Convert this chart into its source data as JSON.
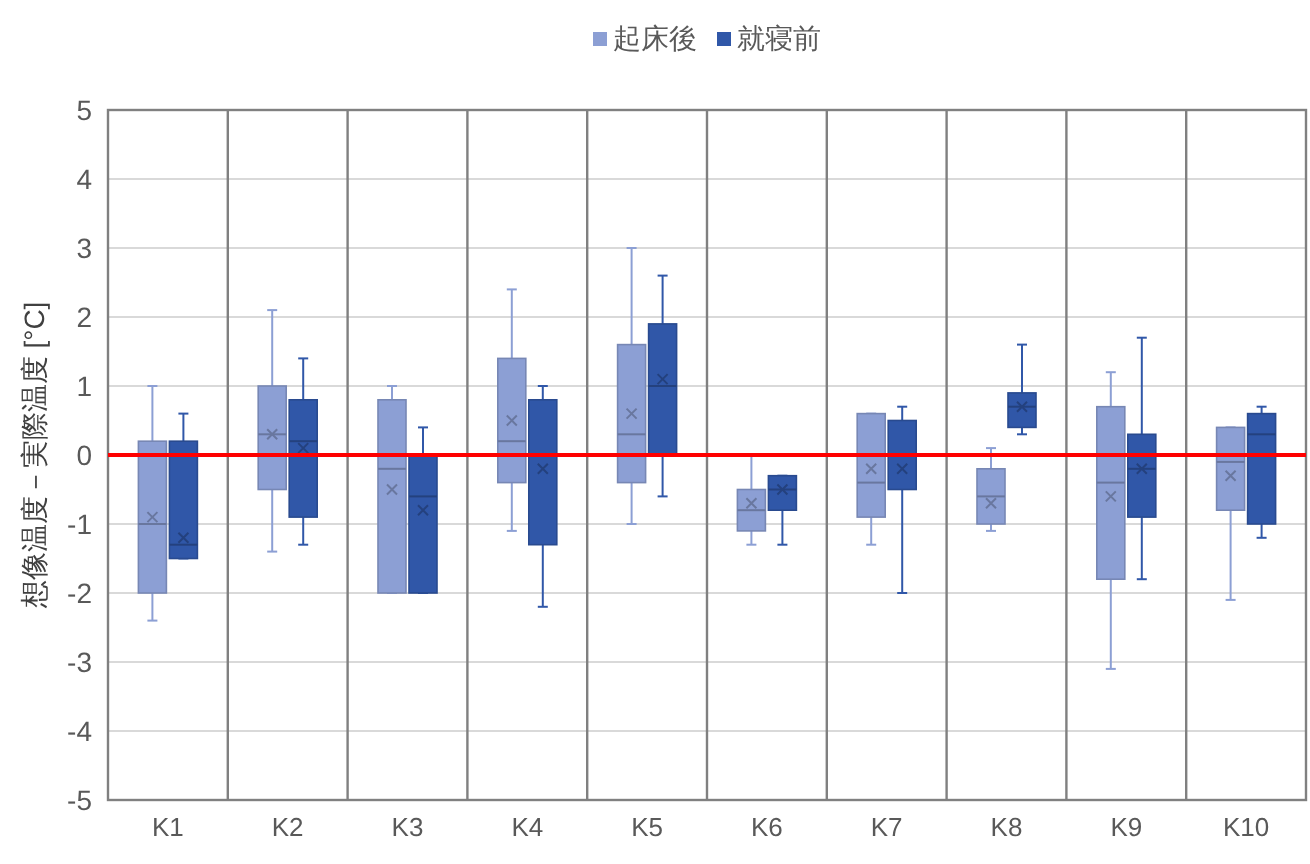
{
  "chart_data": {
    "type": "box",
    "categories": [
      "K1",
      "K2",
      "K3",
      "K4",
      "K5",
      "K6",
      "K7",
      "K8",
      "K9",
      "K10"
    ],
    "series": [
      {
        "name": "起床後",
        "color": "#8c9fd4",
        "boxes": [
          {
            "low": -2.4,
            "q1": -2.0,
            "median": -1.0,
            "q3": 0.2,
            "high": 1.0,
            "mean": -0.9
          },
          {
            "low": -1.4,
            "q1": -0.5,
            "median": 0.3,
            "q3": 1.0,
            "high": 2.1,
            "mean": 0.3
          },
          {
            "low": -2.0,
            "q1": -2.0,
            "median": -0.2,
            "q3": 0.8,
            "high": 1.0,
            "mean": -0.5
          },
          {
            "low": -1.1,
            "q1": -0.4,
            "median": 0.2,
            "q3": 1.4,
            "high": 2.4,
            "mean": 0.5
          },
          {
            "low": -1.0,
            "q1": -0.4,
            "median": 0.3,
            "q3": 1.6,
            "high": 3.0,
            "mean": 0.6
          },
          {
            "low": -1.3,
            "q1": -1.1,
            "median": -0.8,
            "q3": -0.5,
            "high": 0.0,
            "mean": -0.7
          },
          {
            "low": -1.3,
            "q1": -0.9,
            "median": -0.4,
            "q3": 0.6,
            "high": 0.6,
            "mean": -0.2
          },
          {
            "low": -1.1,
            "q1": -1.0,
            "median": -0.6,
            "q3": -0.2,
            "high": 0.1,
            "mean": -0.7
          },
          {
            "low": -3.1,
            "q1": -1.8,
            "median": -0.4,
            "q3": 0.7,
            "high": 1.2,
            "mean": -0.6
          },
          {
            "low": -2.1,
            "q1": -0.8,
            "median": -0.1,
            "q3": 0.4,
            "high": 0.4,
            "mean": -0.3
          }
        ]
      },
      {
        "name": "就寝前",
        "color": "#3057a8",
        "boxes": [
          {
            "low": -1.5,
            "q1": -1.5,
            "median": -1.3,
            "q3": 0.2,
            "high": 0.6,
            "mean": -1.2
          },
          {
            "low": -1.3,
            "q1": -0.9,
            "median": 0.2,
            "q3": 0.8,
            "high": 1.4,
            "mean": 0.1
          },
          {
            "low": -2.0,
            "q1": -2.0,
            "median": -0.6,
            "q3": 0.0,
            "high": 0.4,
            "mean": -0.8
          },
          {
            "low": -2.2,
            "q1": -1.3,
            "median": null,
            "q3": 0.8,
            "high": 1.0,
            "mean": -0.2
          },
          {
            "low": -0.6,
            "q1": 0.0,
            "median": 1.0,
            "q3": 1.9,
            "high": 2.6,
            "mean": 1.1
          },
          {
            "low": -1.3,
            "q1": -0.8,
            "median": -0.5,
            "q3": -0.3,
            "high": -0.3,
            "mean": -0.5
          },
          {
            "low": -2.0,
            "q1": -0.5,
            "median": null,
            "q3": 0.5,
            "high": 0.7,
            "mean": -0.2
          },
          {
            "low": 0.3,
            "q1": 0.4,
            "median": 0.7,
            "q3": 0.9,
            "high": 1.6,
            "mean": 0.7
          },
          {
            "low": -1.8,
            "q1": -0.9,
            "median": -0.2,
            "q3": 0.3,
            "high": 1.7,
            "mean": -0.2
          },
          {
            "low": -1.2,
            "q1": -1.0,
            "median": 0.3,
            "q3": 0.6,
            "high": 0.7
          }
        ]
      }
    ],
    "ylabel": "想像温度－実際温度 [°C]",
    "ylim": [
      -5,
      5
    ],
    "yticks": [
      -5,
      -4,
      -3,
      -2,
      -1,
      0,
      1,
      2,
      3,
      4,
      5
    ],
    "ref_lines": [
      {
        "axis": "y",
        "value": 0,
        "color": "#ff0000"
      }
    ],
    "grid": true,
    "legend": "top",
    "marker": "cross"
  }
}
